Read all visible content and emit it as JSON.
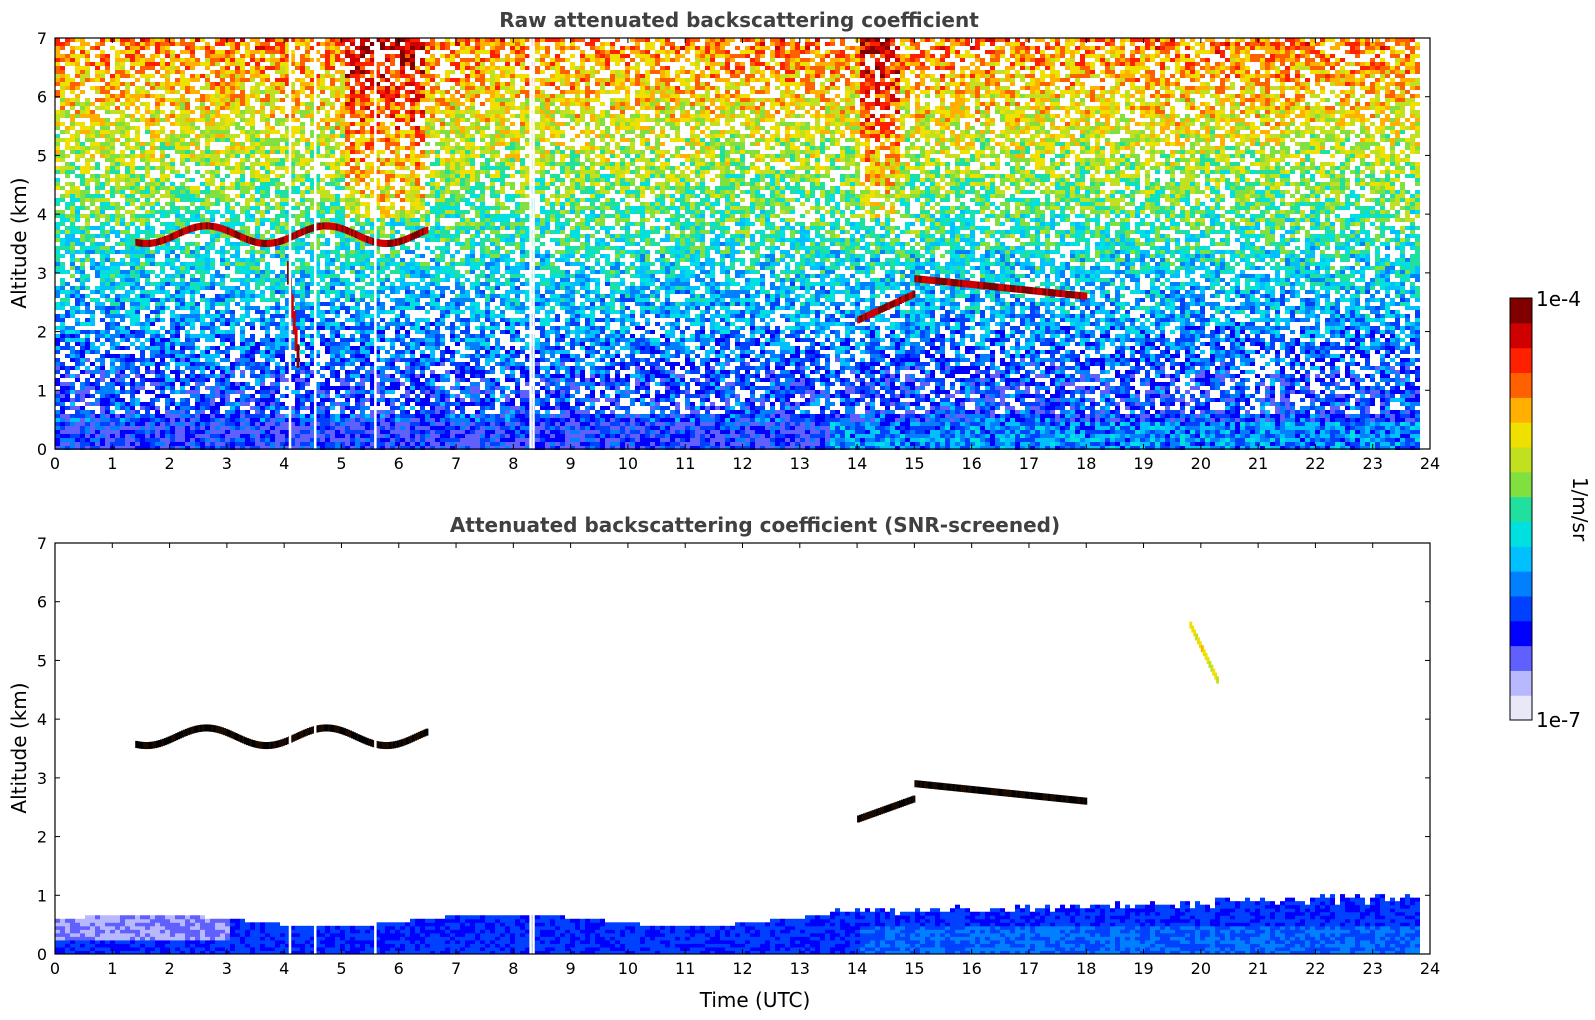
{
  "chart_data": [
    {
      "type": "heatmap",
      "title": "Raw attenuated backscattering coefficient",
      "xlabel": "",
      "ylabel": "Altitude (km)",
      "xlim": [
        0,
        24
      ],
      "ylim": [
        0,
        7
      ],
      "xticks": [
        "0",
        "1",
        "2",
        "3",
        "4",
        "5",
        "6",
        "7",
        "8",
        "9",
        "10",
        "11",
        "12",
        "13",
        "14",
        "15",
        "16",
        "17",
        "18",
        "19",
        "20",
        "21",
        "22",
        "23",
        "24"
      ],
      "yticks": [
        "0",
        "1",
        "2",
        "3",
        "4",
        "5",
        "6",
        "7"
      ],
      "data_extent_hours": [
        0,
        23.8
      ],
      "features": [
        {
          "kind": "cloud layer",
          "time": [
            1.4,
            6.5
          ],
          "altitude_km": [
            3.3,
            4.0
          ],
          "level": "high"
        },
        {
          "kind": "precip streak",
          "time": [
            4.05,
            4.25
          ],
          "altitude_km": [
            1.3,
            3.0
          ],
          "level": "high"
        },
        {
          "kind": "cloud layer",
          "time": [
            14.0,
            18.0
          ],
          "altitude_km": [
            2.2,
            2.9
          ],
          "level": "high"
        },
        {
          "kind": "boundary layer",
          "time": [
            0,
            23.8
          ],
          "altitude_km": [
            0,
            0.8
          ],
          "level": "low"
        }
      ],
      "data_gaps_hours": [
        4.08,
        4.52,
        5.57,
        8.28,
        8.33
      ]
    },
    {
      "type": "heatmap",
      "title": "Attenuated backscattering coefficient (SNR-screened)",
      "xlabel": "Time (UTC)",
      "ylabel": "Altitude (km)",
      "xlim": [
        0,
        24
      ],
      "ylim": [
        0,
        7
      ],
      "xticks": [
        "0",
        "1",
        "2",
        "3",
        "4",
        "5",
        "6",
        "7",
        "8",
        "9",
        "10",
        "11",
        "12",
        "13",
        "14",
        "15",
        "16",
        "17",
        "18",
        "19",
        "20",
        "21",
        "22",
        "23",
        "24"
      ],
      "yticks": [
        "0",
        "1",
        "2",
        "3",
        "4",
        "5",
        "6",
        "7"
      ],
      "data_extent_hours": [
        0,
        23.8
      ],
      "features": [
        {
          "kind": "cloud layer",
          "time": [
            1.4,
            6.5
          ],
          "altitude_km": [
            3.4,
            4.0
          ],
          "level": "saturated"
        },
        {
          "kind": "cloud layer",
          "time": [
            14.0,
            18.0
          ],
          "altitude_km": [
            2.3,
            2.9
          ],
          "level": "saturated"
        },
        {
          "kind": "cirrus",
          "time": [
            19.8,
            20.3
          ],
          "altitude_km": [
            4.6,
            5.6
          ],
          "level": "mid"
        },
        {
          "kind": "boundary layer",
          "time": [
            0,
            23.8
          ],
          "altitude_km": [
            0,
            1.0
          ],
          "level": "low"
        }
      ]
    }
  ],
  "colorbar": {
    "label": "1/m/sr",
    "max_label": "1e-4",
    "min_label": "1e-7",
    "colors": [
      "#e8e8f8",
      "#b8b8ff",
      "#6060ff",
      "#0000ff",
      "#0040ff",
      "#0080ff",
      "#00c0ff",
      "#00e0e0",
      "#20e0a0",
      "#80e040",
      "#c0e020",
      "#f0e000",
      "#ffb000",
      "#ff6000",
      "#ff2000",
      "#d00000",
      "#800000"
    ]
  }
}
